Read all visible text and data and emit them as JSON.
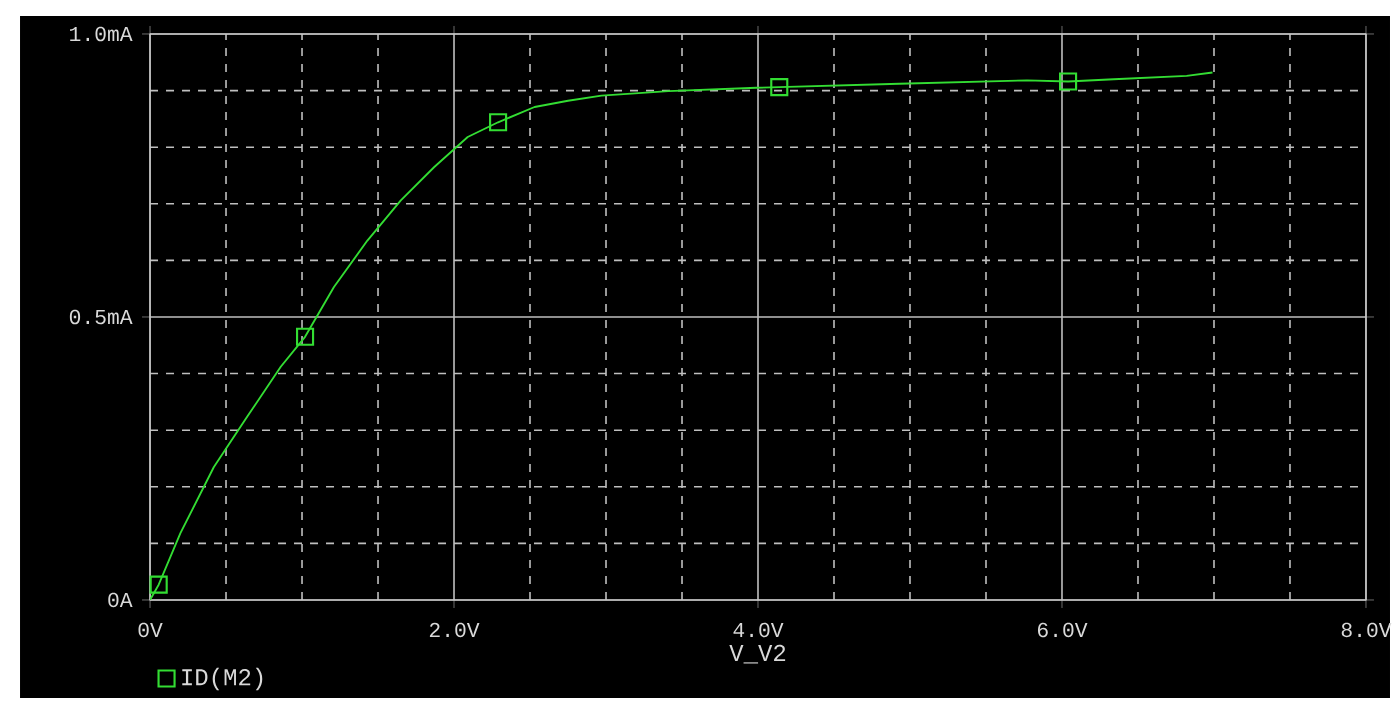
{
  "chart_data": {
    "type": "line",
    "xlabel": "V_V2",
    "legend": "bottom left",
    "grid": true,
    "xlim": [
      0,
      8
    ],
    "ylim": [
      0,
      1.0
    ],
    "xticks": [
      {
        "value": 0,
        "label": "0V"
      },
      {
        "value": 2,
        "label": "2.0V"
      },
      {
        "value": 4,
        "label": "4.0V"
      },
      {
        "value": 6,
        "label": "6.0V"
      },
      {
        "value": 8,
        "label": "8.0V"
      }
    ],
    "yticks": [
      {
        "value": 0,
        "label": "0A"
      },
      {
        "value": 0.5,
        "label": "0.5mA"
      },
      {
        "value": 1.0,
        "label": "1.0mA"
      }
    ],
    "series": [
      {
        "color": "#33dd33",
        "marker": "none",
        "x": [
          0,
          0.057,
          0.2,
          0.42,
          0.64,
          0.86,
          1.02,
          1.21,
          1.43,
          1.65,
          1.87,
          2.09,
          2.29,
          2.53,
          2.75,
          2.97,
          3.41,
          3.99,
          4.14,
          4.93,
          5.77,
          6.04,
          6.34,
          6.82,
          6.99
        ],
        "values": [
          0,
          0.027,
          0.118,
          0.235,
          0.324,
          0.412,
          0.465,
          0.553,
          0.635,
          0.706,
          0.765,
          0.818,
          0.844,
          0.871,
          0.882,
          0.891,
          0.899,
          0.905,
          0.906,
          0.912,
          0.918,
          0.916,
          0.92,
          0.926,
          0.932
        ]
      },
      {
        "type": "scatter",
        "name": "ID(M2)",
        "color": "#33dd33",
        "marker": "square",
        "x": [
          0.057,
          1.02,
          2.29,
          4.14,
          6.04
        ],
        "values": [
          0.027,
          0.465,
          0.844,
          0.906,
          0.916
        ]
      }
    ]
  }
}
